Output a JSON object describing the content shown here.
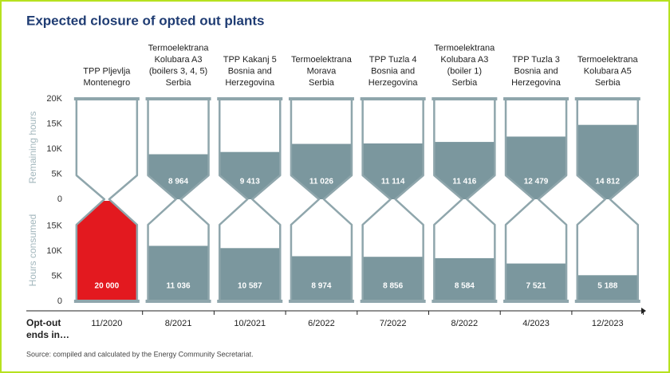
{
  "chart_data": {
    "type": "hourglass",
    "title": "Expected closure of opted out plants",
    "categories": [
      [
        "TPP Pljevlja",
        "Montenegro"
      ],
      [
        "Termoelektrana",
        "Kolubara A3",
        "(boilers 3, 4, 5)",
        "Serbia"
      ],
      [
        "TPP Kakanj 5",
        "Bosnia and",
        "Herzegovina"
      ],
      [
        "Termoelektrana",
        "Morava",
        "Serbia"
      ],
      [
        "TPP Tuzla 4",
        "Bosnia and",
        "Herzegovina"
      ],
      [
        "Termoelektrana",
        "Kolubara A3",
        "(boiler 1)",
        "Serbia"
      ],
      [
        "TPP Tuzla 3",
        "Bosnia and",
        "Herzegovina"
      ],
      [
        "Termoelektrana",
        "Kolubara A5",
        "Serbia"
      ]
    ],
    "x_title": [
      "Opt-out",
      "ends in…"
    ],
    "x": [
      "11/2020",
      "8/2021",
      "10/2021",
      "6/2022",
      "7/2022",
      "8/2022",
      "4/2023",
      "12/2023"
    ],
    "colors": [
      "#e3191f",
      "#7b979e",
      "#7b979e",
      "#7b979e",
      "#7b979e",
      "#7b979e",
      "#7b979e",
      "#7b979e"
    ],
    "outline_color": "#8fa6ac",
    "series": [
      {
        "name": "Remaining hours",
        "axis": "y",
        "values": [
          0,
          8964,
          9413,
          11026,
          11114,
          11416,
          12479,
          14812
        ],
        "value_labels": [
          null,
          "8 964",
          "9 413",
          "11 026",
          "11 114",
          "11 416",
          "12 479",
          "14 812"
        ]
      },
      {
        "name": "Hours consumed",
        "axis": "y2",
        "values": [
          20000,
          11036,
          10587,
          8974,
          8856,
          8584,
          7521,
          5188
        ],
        "value_labels": [
          "20 000",
          "11 036",
          "10 587",
          "8 974",
          "8 856",
          "8 584",
          "7 521",
          "5 188"
        ]
      }
    ],
    "ylim": [
      0,
      20000
    ],
    "yticks": [
      0,
      {
        "value": 5000,
        "label": "5K"
      },
      {
        "value": 10000,
        "label": "10K"
      },
      {
        "value": 15000,
        "label": "15K"
      },
      {
        "value": 20000,
        "label": "20K"
      }
    ],
    "y2lim": [
      0,
      20000
    ],
    "y2ticks": [
      0,
      {
        "value": 5000,
        "label": "5K"
      },
      {
        "value": 10000,
        "label": "10K"
      },
      {
        "value": 15000,
        "label": "15K"
      }
    ],
    "source": "Source: compiled and calculated by the Energy Community Secretariat."
  }
}
